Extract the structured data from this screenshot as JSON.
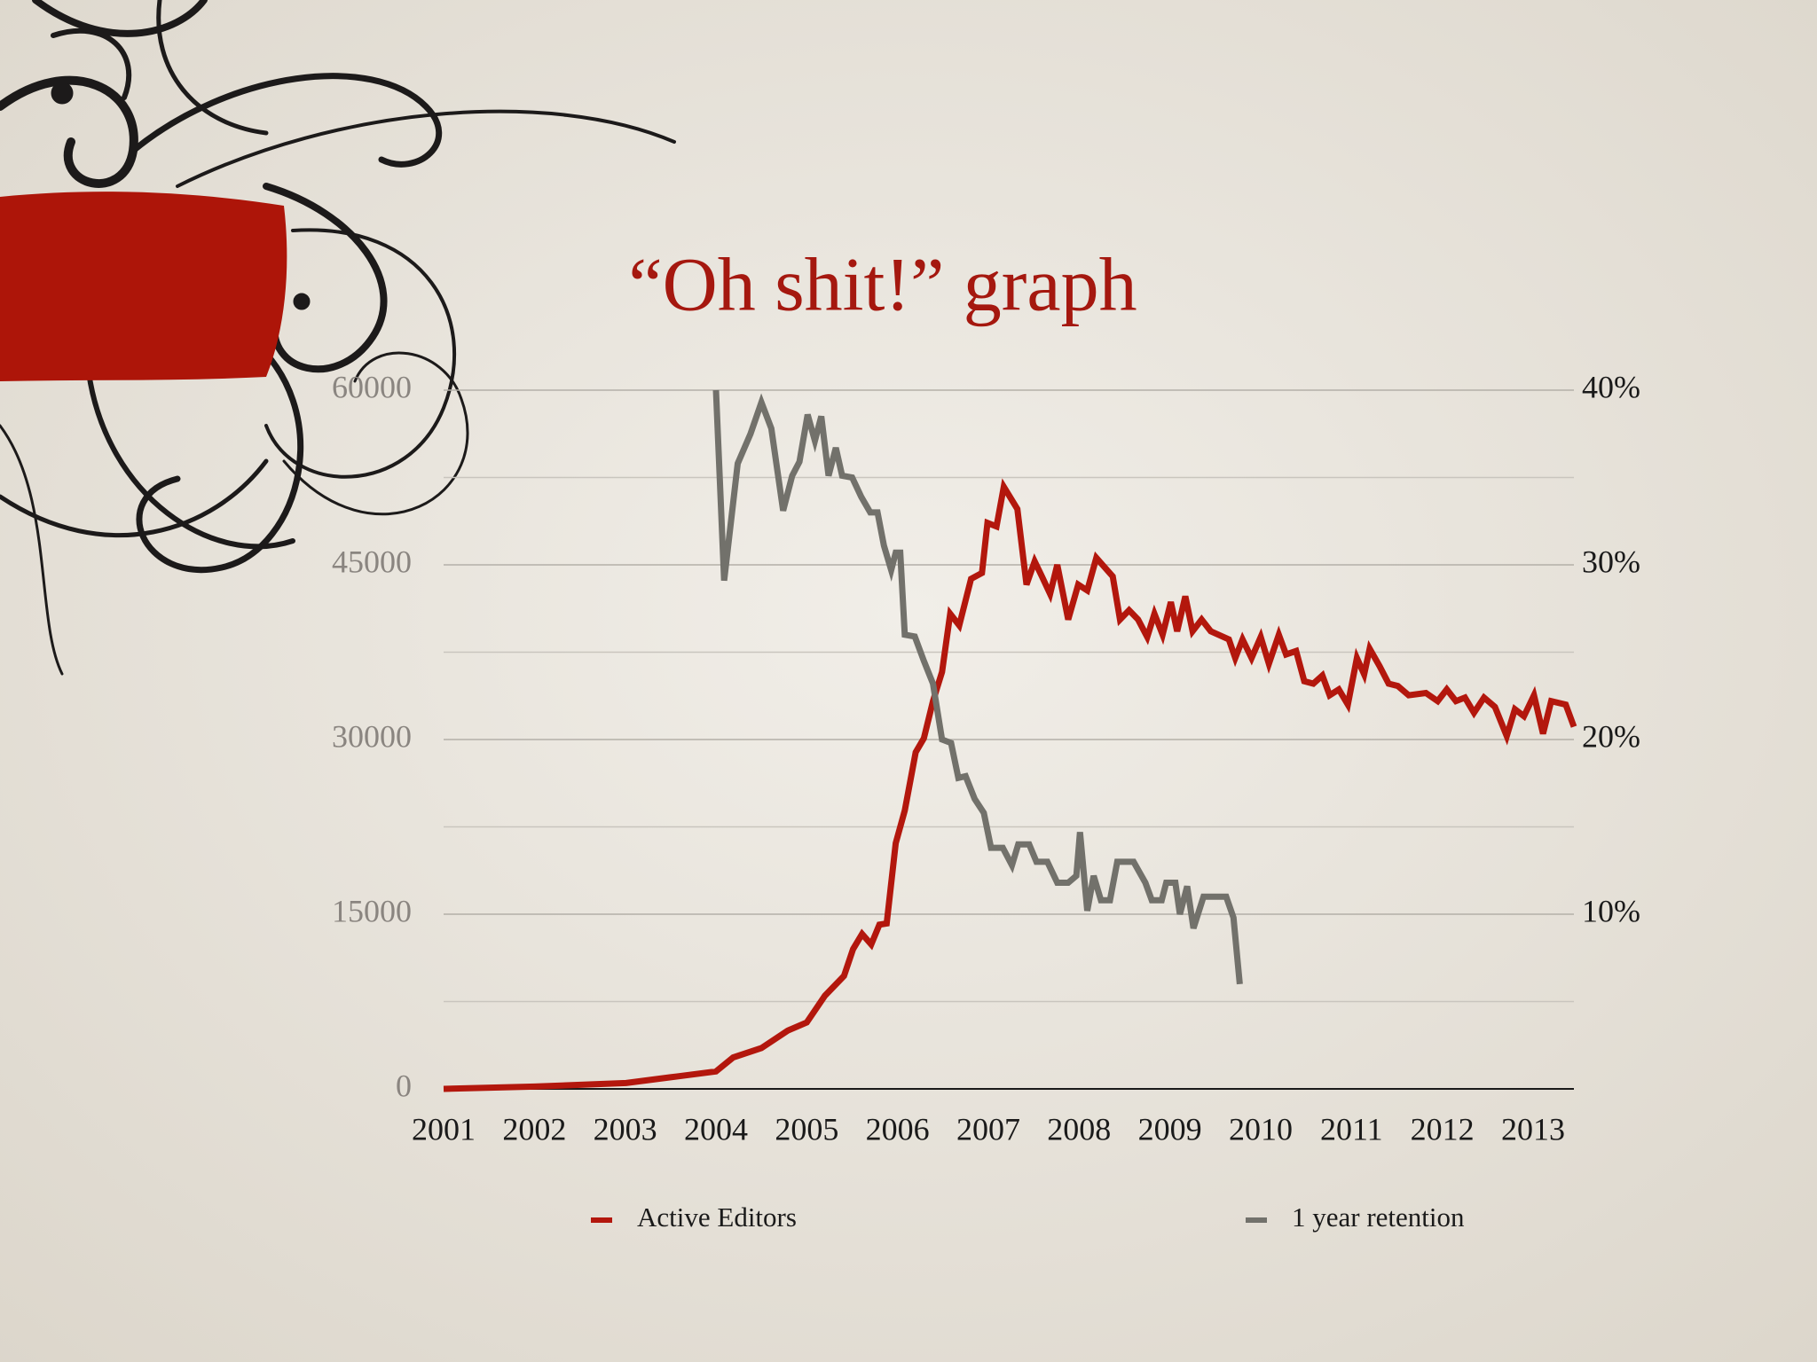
{
  "chart_data": {
    "type": "line",
    "title": "“Oh shit!” graph",
    "xlim": [
      2001,
      2013.45
    ],
    "xticks": [
      2001,
      2002,
      2003,
      2004,
      2005,
      2006,
      2007,
      2008,
      2009,
      2010,
      2011,
      2012,
      2013
    ],
    "ylim": [
      0,
      60000
    ],
    "yticks": [
      0,
      15000,
      30000,
      45000,
      60000
    ],
    "y_minor_gridlines": [
      7500,
      22500,
      37500,
      52500
    ],
    "y2lim": [
      0,
      40
    ],
    "y2ticks": [
      {
        "value": 10,
        "label": "10%"
      },
      {
        "value": 20,
        "label": "20%"
      },
      {
        "value": 30,
        "label": "30%"
      },
      {
        "value": 40,
        "label": "40%"
      }
    ],
    "grid": true,
    "legend": "bottom",
    "series": [
      {
        "name": "Active Editors",
        "color": "#b3170d",
        "x": [
          2001.0,
          2002.0,
          2003.01,
          2003.5,
          2004.0,
          2004.19,
          2004.5,
          2004.79,
          2005.0,
          2005.2,
          2005.41,
          2005.51,
          2005.61,
          2005.71,
          2005.8,
          2005.88,
          2005.98,
          2006.08,
          2006.2,
          2006.29,
          2006.39,
          2006.49,
          2006.58,
          2006.68,
          2006.81,
          2006.93,
          2006.99,
          2007.09,
          2007.17,
          2007.32,
          2007.42,
          2007.51,
          2007.59,
          2007.68,
          2007.76,
          2007.88,
          2007.99,
          2008.09,
          2008.19,
          2008.37,
          2008.45,
          2008.55,
          2008.65,
          2008.75,
          2008.83,
          2008.92,
          2009.01,
          2009.08,
          2009.17,
          2009.25,
          2009.35,
          2009.45,
          2009.65,
          2009.72,
          2009.8,
          2009.9,
          2010.0,
          2010.09,
          2010.2,
          2010.28,
          2010.39,
          2010.48,
          2010.58,
          2010.68,
          2010.76,
          2010.86,
          2010.96,
          2011.06,
          2011.14,
          2011.2,
          2011.31,
          2011.41,
          2011.51,
          2011.63,
          2011.82,
          2011.95,
          2012.05,
          2012.15,
          2012.25,
          2012.35,
          2012.46,
          2012.58,
          2012.71,
          2012.8,
          2012.9,
          2013.01,
          2013.11,
          2013.2,
          2013.36,
          2013.45
        ],
        "values": [
          0,
          200,
          500,
          1000,
          1500,
          2700,
          3500,
          5000,
          5700,
          8000,
          9700,
          12000,
          13300,
          12400,
          14100,
          14200,
          21100,
          23900,
          28900,
          30100,
          33300,
          35800,
          40800,
          39800,
          43800,
          44300,
          48600,
          48300,
          51700,
          49800,
          43300,
          45300,
          44000,
          42500,
          45000,
          40300,
          43300,
          42800,
          45600,
          44000,
          40300,
          41100,
          40300,
          38800,
          40800,
          39000,
          41800,
          39300,
          42300,
          39300,
          40300,
          39300,
          38600,
          37000,
          38600,
          37000,
          38800,
          36500,
          39000,
          37300,
          37600,
          35000,
          34800,
          35500,
          33800,
          34300,
          33000,
          37000,
          35600,
          37800,
          36300,
          34800,
          34600,
          33800,
          34000,
          33300,
          34300,
          33300,
          33600,
          32300,
          33600,
          32800,
          30300,
          32600,
          32000,
          33800,
          30500,
          33300,
          33000,
          31100
        ]
      },
      {
        "name": "1 year retention",
        "color": "#72716b",
        "axis": "y2",
        "x": [
          2004.0,
          2004.09,
          2004.24,
          2004.38,
          2004.5,
          2004.61,
          2004.74,
          2004.84,
          2004.92,
          2005.01,
          2005.09,
          2005.16,
          2005.24,
          2005.32,
          2005.39,
          2005.5,
          2005.6,
          2005.7,
          2005.78,
          2005.85,
          2005.93,
          2005.98,
          2006.03,
          2006.08,
          2006.19,
          2006.29,
          2006.39,
          2006.49,
          2006.59,
          2006.67,
          2006.75,
          2006.85,
          2006.95,
          2007.03,
          2007.16,
          2007.26,
          2007.33,
          2007.45,
          2007.53,
          2007.65,
          2007.76,
          2007.88,
          2007.97,
          2008.01,
          2008.09,
          2008.16,
          2008.24,
          2008.34,
          2008.42,
          2008.6,
          2008.73,
          2008.8,
          2008.91,
          2008.96,
          2009.06,
          2009.11,
          2009.19,
          2009.26,
          2009.37,
          2009.62,
          2009.7,
          2009.77
        ],
        "values": [
          40.0,
          29.1,
          35.8,
          37.5,
          39.3,
          37.8,
          33.1,
          35.1,
          35.9,
          38.6,
          37.1,
          38.5,
          35.1,
          36.7,
          35.1,
          35.0,
          33.9,
          33.0,
          33.0,
          31.1,
          29.7,
          30.7,
          30.7,
          26.0,
          25.9,
          24.5,
          23.2,
          20.0,
          19.8,
          17.8,
          17.9,
          16.6,
          15.8,
          13.8,
          13.8,
          12.8,
          14.0,
          14.0,
          13.0,
          13.0,
          11.8,
          11.8,
          12.2,
          14.7,
          10.2,
          12.2,
          10.8,
          10.8,
          13.0,
          13.0,
          11.8,
          10.8,
          10.8,
          11.8,
          11.8,
          10.0,
          11.6,
          9.2,
          11.0,
          11.0,
          9.8,
          6.0
        ]
      }
    ]
  }
}
